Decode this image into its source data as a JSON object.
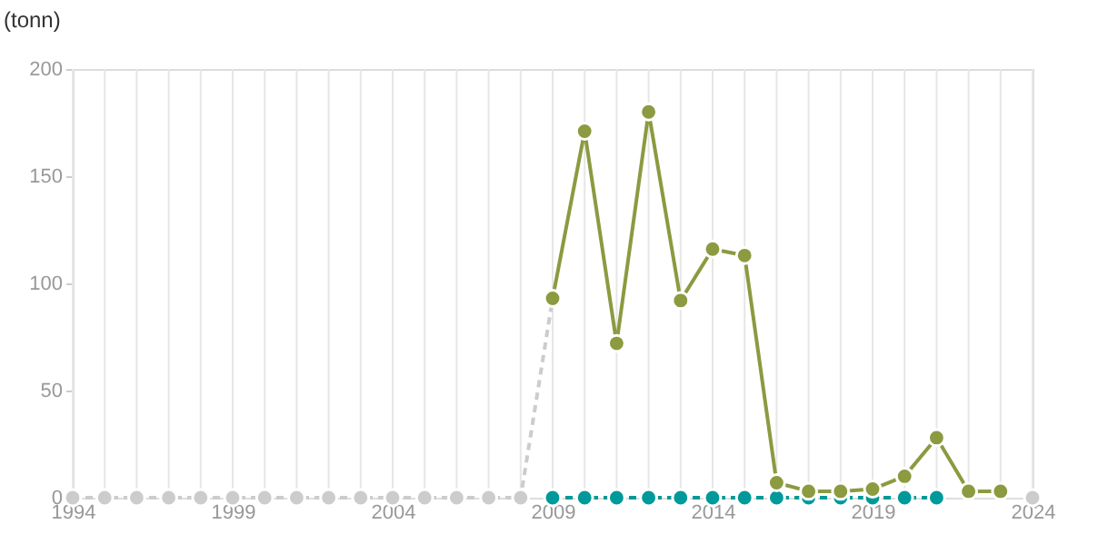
{
  "chart_data": {
    "type": "line",
    "ylabel": "(tonn)",
    "xlim": [
      1994,
      2024
    ],
    "ylim": [
      0,
      200
    ],
    "yticks": [
      0,
      50,
      100,
      150,
      200
    ],
    "xticks": [
      1994,
      {
        "value": 1995,
        "label": null
      },
      {
        "value": 1996,
        "label": null
      },
      {
        "value": 1997,
        "label": null
      },
      {
        "value": 1998,
        "label": null
      },
      1999,
      {
        "value": 2000,
        "label": null
      },
      {
        "value": 2001,
        "label": null
      },
      {
        "value": 2002,
        "label": null
      },
      {
        "value": 2003,
        "label": null
      },
      2004,
      {
        "value": 2005,
        "label": null
      },
      {
        "value": 2006,
        "label": null
      },
      {
        "value": 2007,
        "label": null
      },
      {
        "value": 2008,
        "label": null
      },
      2009,
      {
        "value": 2010,
        "label": null
      },
      {
        "value": 2011,
        "label": null
      },
      {
        "value": 2012,
        "label": null
      },
      {
        "value": 2013,
        "label": null
      },
      2014,
      {
        "value": 2015,
        "label": null
      },
      {
        "value": 2016,
        "label": null
      },
      {
        "value": 2017,
        "label": null
      },
      {
        "value": 2018,
        "label": null
      },
      2019,
      {
        "value": 2020,
        "label": null
      },
      {
        "value": 2021,
        "label": null
      },
      {
        "value": 2022,
        "label": null
      },
      {
        "value": 2023,
        "label": null
      },
      2024
    ],
    "grid": "x",
    "marker": "circle",
    "series": [
      {
        "color": "#cccccc",
        "line_style": "dashed",
        "x": [
          1994,
          1995,
          1996,
          1997,
          1998,
          1999,
          2000,
          2001,
          2002,
          2003,
          2004,
          2005,
          2006,
          2007,
          2008,
          2009,
          2010,
          2024
        ],
        "values": [
          0,
          0,
          0,
          0,
          0,
          0,
          0,
          0,
          0,
          0,
          0,
          0,
          0,
          0,
          0,
          93,
          null,
          0
        ]
      },
      {
        "color": "#009999",
        "line_style": "dashed",
        "x": [
          2009,
          2010,
          2011,
          2012,
          2013,
          2014,
          2015,
          2016,
          2017,
          2018,
          2019,
          2020,
          2021
        ],
        "values": [
          0,
          0,
          0,
          0,
          0,
          0,
          0,
          0,
          0,
          0,
          0,
          0,
          0
        ]
      },
      {
        "color": "#8c9a40",
        "line_style": "solid",
        "x": [
          2009,
          2010,
          2011,
          2012,
          2013,
          2014,
          2015,
          2016,
          2017,
          2018,
          2019,
          2020,
          2021,
          2022,
          2023
        ],
        "values": [
          93,
          171,
          72,
          180,
          92,
          116,
          113,
          7,
          3,
          3,
          4,
          10,
          28,
          3,
          3
        ]
      }
    ]
  }
}
